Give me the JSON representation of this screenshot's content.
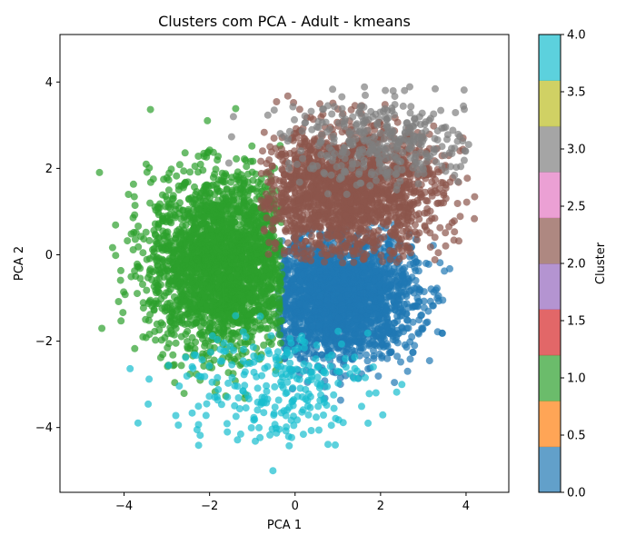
{
  "chart_data": {
    "type": "scatter",
    "title": "Clusters com PCA - Adult - kmeans",
    "xlabel": "PCA 1",
    "ylabel": "PCA 2",
    "xlim": [
      -5.5,
      5.0
    ],
    "ylim": [
      -5.5,
      5.1
    ],
    "xticks": [
      -4,
      -2,
      0,
      2,
      4
    ],
    "yticks": [
      -4,
      -2,
      0,
      2,
      4
    ],
    "grid": false,
    "legend": "none",
    "colorbar": {
      "label": "Cluster",
      "range": [
        0.0,
        4.0
      ],
      "ticks": [
        "0.0",
        "0.5",
        "1.0",
        "1.5",
        "2.0",
        "2.5",
        "3.0",
        "3.5",
        "4.0"
      ],
      "colormap": [
        "#1f77b4",
        "#ff7f0e",
        "#2ca02c",
        "#d62728",
        "#9467bd",
        "#8c564b",
        "#e377c2",
        "#7f7f7f",
        "#bcbd22",
        "#17becf"
      ]
    },
    "series": [
      {
        "cluster": 0,
        "color": "#1f77b4",
        "center": [
          1.0,
          -1.0
        ],
        "spread": [
          0.9,
          0.7
        ],
        "count": 2200,
        "bounds": [
          -0.6,
          3.8,
          -4.2,
          0.9
        ]
      },
      {
        "cluster": 1,
        "color": "#2ca02c",
        "center": [
          -1.7,
          -0.2
        ],
        "spread": [
          0.85,
          1.0
        ],
        "count": 2400,
        "bounds": [
          -5.1,
          -0.3,
          -4.2,
          3.8
        ]
      },
      {
        "cluster": 2,
        "color": "#8c564b",
        "center": [
          1.2,
          1.4
        ],
        "spread": [
          1.1,
          0.75
        ],
        "count": 1700,
        "bounds": [
          -0.8,
          4.5,
          -0.2,
          3.7
        ]
      },
      {
        "cluster": 3,
        "color": "#7f7f7f",
        "center": [
          2.2,
          2.6
        ],
        "spread": [
          1.2,
          0.5
        ],
        "count": 350,
        "bounds": [
          -1.8,
          4.1,
          1.2,
          4.6
        ]
      },
      {
        "cluster": 4,
        "color": "#17becf",
        "center": [
          -0.6,
          -3.0
        ],
        "spread": [
          1.2,
          0.7
        ],
        "count": 260,
        "bounds": [
          -5.0,
          2.5,
          -5.1,
          0.4
        ]
      }
    ]
  }
}
